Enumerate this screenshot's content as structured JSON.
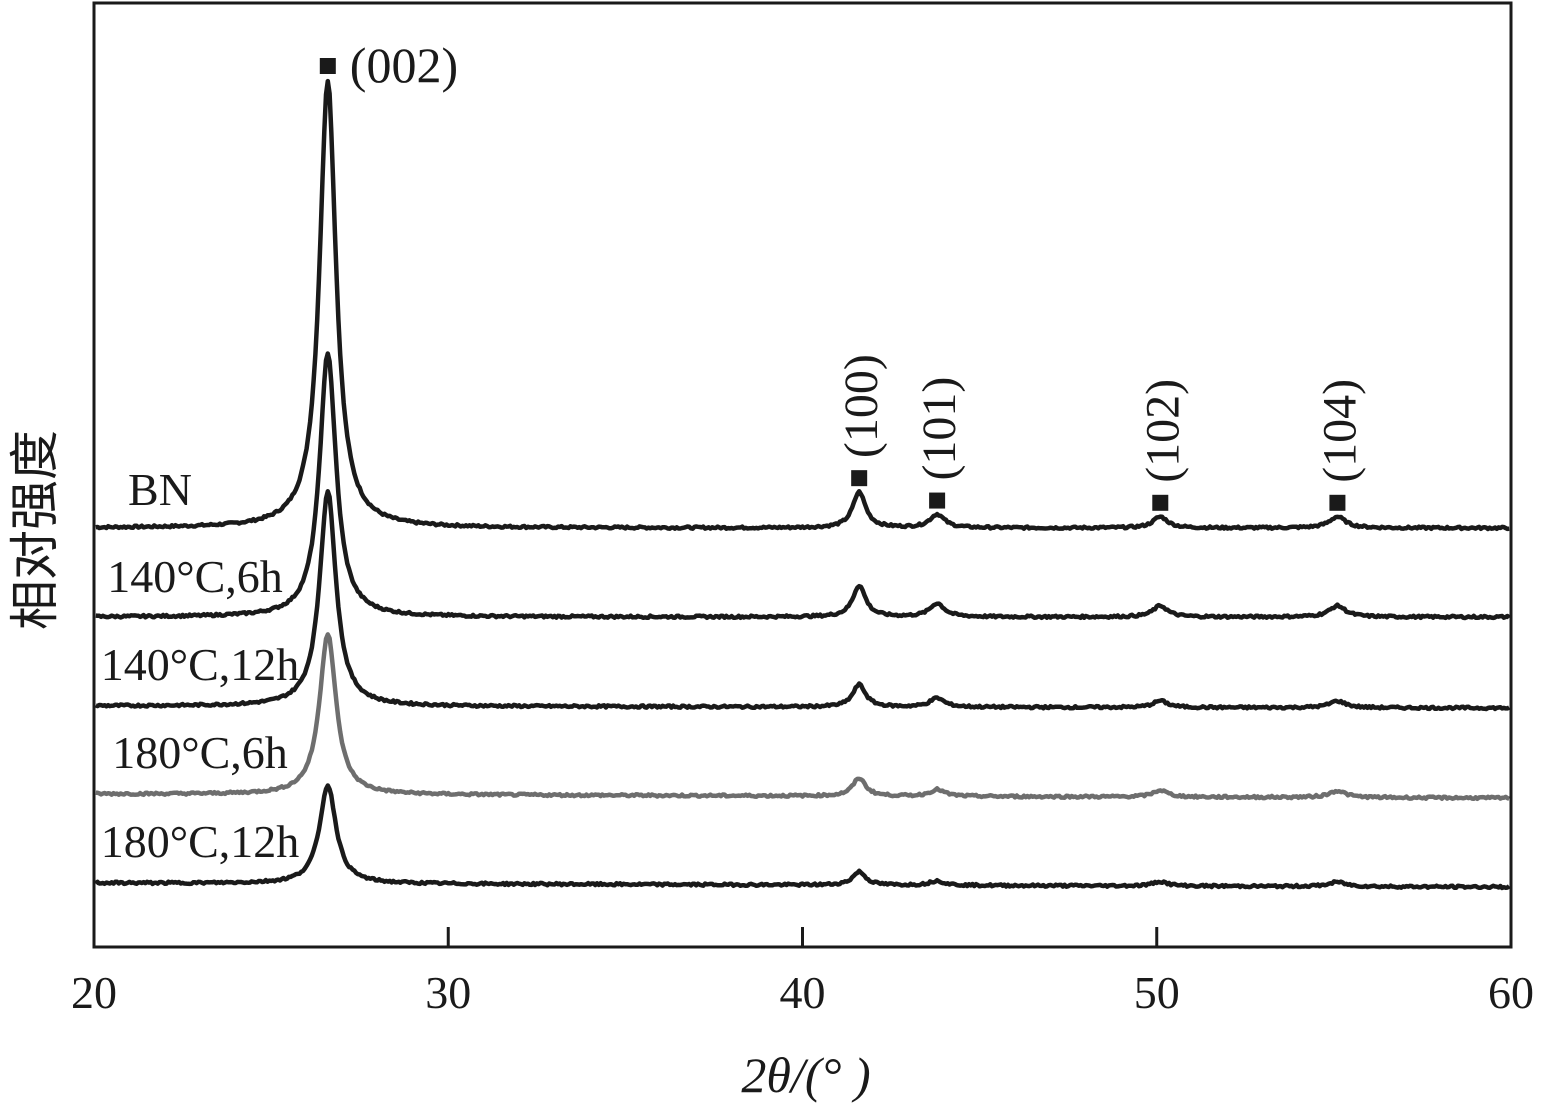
{
  "chart_data": {
    "type": "line",
    "xlabel": "2θ/(°  )",
    "ylabel": "相对强度",
    "xlim": [
      20,
      60
    ],
    "x_ticks": [
      20,
      30,
      40,
      50,
      60
    ],
    "x_tick_labels": [
      "20",
      "30",
      "40",
      "50",
      "60"
    ],
    "y_ticks": [],
    "grid": false,
    "legend": "none",
    "peaks": [
      {
        "position": 26.6,
        "label": "(002)"
      },
      {
        "position": 41.6,
        "label": "(100)"
      },
      {
        "position": 43.8,
        "label": "(101)"
      },
      {
        "position": 50.1,
        "label": "(102)"
      },
      {
        "position": 55.1,
        "label": "(104)"
      }
    ],
    "series": [
      {
        "name": "BN",
        "color": "#1a1a1a",
        "intensity_002": 100,
        "intensity_100": 8,
        "intensity_101": 3,
        "intensity_102": 2.5,
        "intensity_104": 2.5
      },
      {
        "name": "140°C,6h",
        "color": "#1a1a1a",
        "intensity_002": 59,
        "intensity_100": 7,
        "intensity_101": 3,
        "intensity_102": 2.5,
        "intensity_104": 2.5
      },
      {
        "name": "140°C,12h",
        "color": "#1a1a1a",
        "intensity_002": 48,
        "intensity_100": 5,
        "intensity_101": 2,
        "intensity_102": 1.5,
        "intensity_104": 1.5
      },
      {
        "name": "180°C,6h",
        "color": "#6e6e6e",
        "intensity_002": 36,
        "intensity_100": 4,
        "intensity_101": 1.5,
        "intensity_102": 1.5,
        "intensity_104": 1.5
      },
      {
        "name": "180°C,12h",
        "color": "#1a1a1a",
        "intensity_002": 22,
        "intensity_100": 3,
        "intensity_101": 1,
        "intensity_102": 1,
        "intensity_104": 1
      }
    ]
  }
}
